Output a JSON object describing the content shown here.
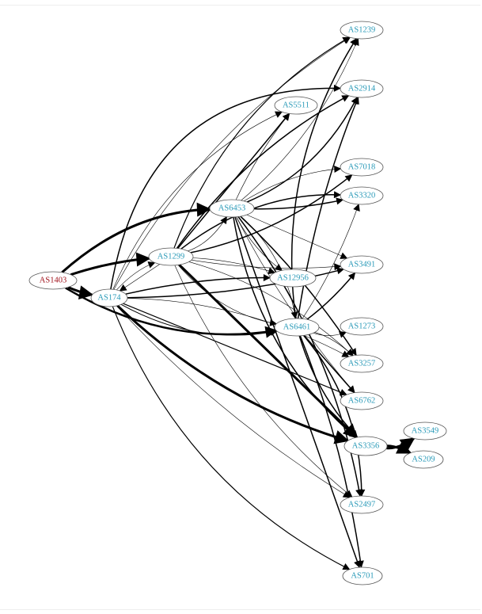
{
  "colors": {
    "source_label": "#a0131c",
    "node_label": "#2a9ab8",
    "edge": "#000000"
  },
  "nodes": [
    {
      "id": "AS1403",
      "label": "AS1403",
      "role": "source"
    },
    {
      "id": "AS174",
      "label": "AS174"
    },
    {
      "id": "AS1299",
      "label": "AS1299"
    },
    {
      "id": "AS6453",
      "label": "AS6453"
    },
    {
      "id": "AS5511",
      "label": "AS5511"
    },
    {
      "id": "AS12956",
      "label": "AS12956"
    },
    {
      "id": "AS6461",
      "label": "AS6461"
    },
    {
      "id": "AS1239",
      "label": "AS1239"
    },
    {
      "id": "AS2914",
      "label": "AS2914"
    },
    {
      "id": "AS7018",
      "label": "AS7018"
    },
    {
      "id": "AS3320",
      "label": "AS3320"
    },
    {
      "id": "AS3491",
      "label": "AS3491"
    },
    {
      "id": "AS1273",
      "label": "AS1273"
    },
    {
      "id": "AS3257",
      "label": "AS3257"
    },
    {
      "id": "AS6762",
      "label": "AS6762"
    },
    {
      "id": "AS3356",
      "label": "AS3356"
    },
    {
      "id": "AS3549",
      "label": "AS3549"
    },
    {
      "id": "AS209",
      "label": "AS209"
    },
    {
      "id": "AS2497",
      "label": "AS2497"
    },
    {
      "id": "AS701",
      "label": "AS701"
    }
  ],
  "edges": [
    [
      "AS1403",
      "AS6453",
      3
    ],
    [
      "AS1403",
      "AS1299",
      3
    ],
    [
      "AS1403",
      "AS174",
      3
    ],
    [
      "AS1403",
      "AS6461",
      2.5
    ],
    [
      "AS174",
      "AS1299",
      0.6
    ],
    [
      "AS1299",
      "AS174",
      0.6
    ],
    [
      "AS174",
      "AS1239",
      0.6
    ],
    [
      "AS174",
      "AS2914",
      1.5
    ],
    [
      "AS174",
      "AS12956",
      1.5
    ],
    [
      "AS174",
      "AS3491",
      1.5
    ],
    [
      "AS174",
      "AS6461",
      1
    ],
    [
      "AS174",
      "AS3257",
      0.6
    ],
    [
      "AS174",
      "AS6762",
      1.2
    ],
    [
      "AS174",
      "AS3356",
      3
    ],
    [
      "AS174",
      "AS2497",
      0.6
    ],
    [
      "AS174",
      "AS701",
      1.2
    ],
    [
      "AS174",
      "AS5511",
      0.6
    ],
    [
      "AS1299",
      "AS6453",
      0.6
    ],
    [
      "AS1299",
      "AS2914",
      1.5
    ],
    [
      "AS1299",
      "AS5511",
      1.5
    ],
    [
      "AS1299",
      "AS7018",
      1.5
    ],
    [
      "AS1299",
      "AS3320",
      1.5
    ],
    [
      "AS1299",
      "AS12956",
      0.6
    ],
    [
      "AS1299",
      "AS3491",
      0.6
    ],
    [
      "AS1299",
      "AS6461",
      0.6
    ],
    [
      "AS1299",
      "AS3257",
      0.6
    ],
    [
      "AS1299",
      "AS3356",
      3
    ],
    [
      "AS1299",
      "AS2497",
      0.6
    ],
    [
      "AS1299",
      "AS1239",
      1.2
    ],
    [
      "AS6453",
      "AS5511",
      0.6
    ],
    [
      "AS6453",
      "AS3320",
      1.5
    ],
    [
      "AS6453",
      "AS2914",
      1.5
    ],
    [
      "AS6453",
      "AS7018",
      0.6
    ],
    [
      "AS6453",
      "AS3491",
      0.6
    ],
    [
      "AS6453",
      "AS12956",
      0.6
    ],
    [
      "AS6453",
      "AS6461",
      0.6
    ],
    [
      "AS6453",
      "AS3257",
      1.5
    ],
    [
      "AS6453",
      "AS6762",
      0.6
    ],
    [
      "AS6453",
      "AS3356",
      1.5
    ],
    [
      "AS6453",
      "AS2497",
      1.5
    ],
    [
      "AS6453",
      "AS701",
      1.5
    ],
    [
      "AS6453",
      "AS1239",
      0.6
    ],
    [
      "AS6461",
      "AS1239",
      1.5
    ],
    [
      "AS6461",
      "AS2914",
      1.5
    ],
    [
      "AS6461",
      "AS3491",
      1.5
    ],
    [
      "AS6461",
      "AS1273",
      0.6
    ],
    [
      "AS6461",
      "AS3257",
      0.6
    ],
    [
      "AS6461",
      "AS6762",
      1.5
    ],
    [
      "AS6461",
      "AS3356",
      1.5
    ],
    [
      "AS6461",
      "AS2497",
      1.5
    ],
    [
      "AS6461",
      "AS701",
      1.5
    ],
    [
      "AS6461",
      "AS3320",
      0.6
    ],
    [
      "AS3356",
      "AS3549",
      3
    ],
    [
      "AS3356",
      "AS209",
      3
    ]
  ]
}
